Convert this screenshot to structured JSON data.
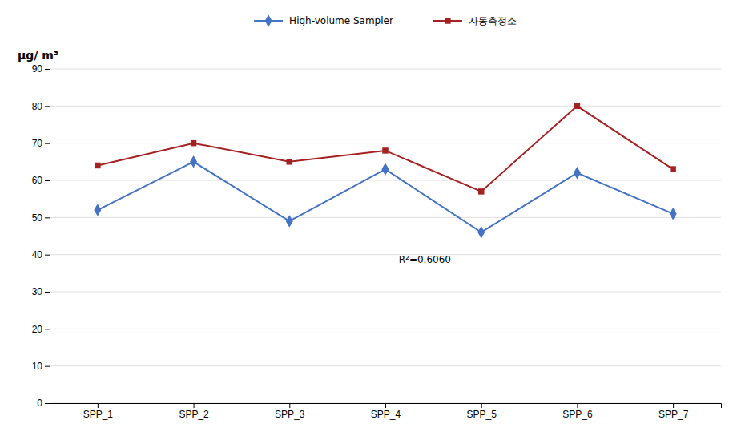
{
  "chart_data": {
    "type": "line",
    "y_label": "μg/ m³",
    "annotations": [
      "R²=0.6060"
    ],
    "categories": [
      "SPP_1",
      "SPP_2",
      "SPP_3",
      "SPP_4",
      "SPP_5",
      "SPP_6",
      "SPP_7"
    ],
    "series": [
      {
        "name": "High-volume Sampler",
        "color": "#4472C4",
        "marker": "diamond",
        "values": [
          52,
          65,
          49,
          63,
          46,
          62,
          51
        ]
      },
      {
        "name": "자동측정소",
        "color": "#A52020",
        "marker": "square",
        "values": [
          64,
          70,
          65,
          68,
          57,
          80,
          63
        ]
      }
    ],
    "ylim": [
      0,
      90
    ],
    "yticks": [
      0,
      10,
      20,
      30,
      40,
      50,
      60,
      70,
      80,
      90
    ],
    "grid": true,
    "legend": "top"
  }
}
